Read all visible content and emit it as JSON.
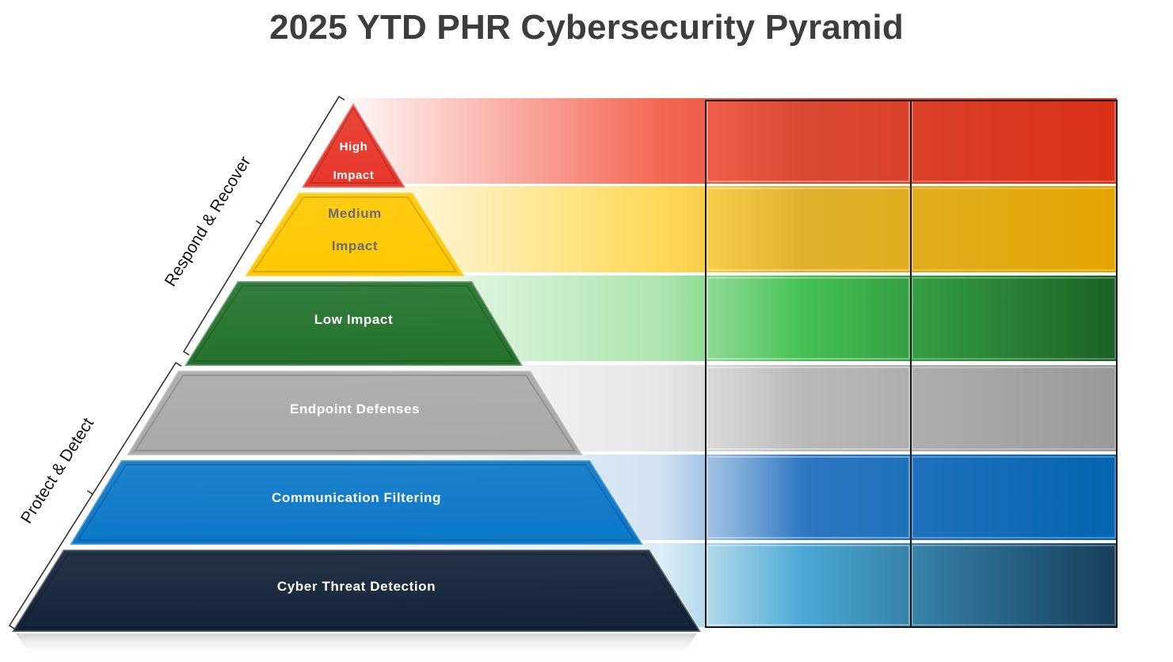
{
  "title": "2025 YTD PHR Cybersecurity Pyramid",
  "brackets": {
    "top": "Respond & Recover",
    "bottom": "Protect & Detect"
  },
  "tiers": [
    {
      "id": "high",
      "lines": [
        "High",
        "Impact"
      ],
      "color": "#e8372b",
      "text_color": "#ffffff",
      "band_from": "#f24b35",
      "band_mid": "#db4a33",
      "band_to": "#db3018"
    },
    {
      "id": "medium",
      "lines": [
        "Medium",
        "Impact"
      ],
      "color": "#ffc800",
      "text_color": "#6b6b7a",
      "band_from": "#ffd23a",
      "band_mid": "#e0b02c",
      "band_to": "#e3a500"
    },
    {
      "id": "low",
      "lines": [
        "Low Impact"
      ],
      "color": "#23722c",
      "text_color": "#ffffff",
      "band_from": "#9ee0a0",
      "band_mid": "#44c054",
      "band_to": "#1b6125"
    },
    {
      "id": "endpoint",
      "lines": [
        "Endpoint Defenses"
      ],
      "color": "#a9a9a9",
      "text_color": "#ffffff",
      "band_from": "#e2e2e2",
      "band_mid": "#b9b9b9",
      "band_to": "#999999"
    },
    {
      "id": "communication",
      "lines": [
        "Communication Filtering"
      ],
      "color": "#0b78c9",
      "text_color": "#ffffff",
      "band_from": "#c9dcef",
      "band_mid": "#2e77c2",
      "band_to": "#0465b0"
    },
    {
      "id": "detection",
      "lines": [
        "Cyber Threat Detection"
      ],
      "color": "#132237",
      "text_color": "#ffffff",
      "band_from": "#d5eaf3",
      "band_mid": "#49a7d4",
      "band_to": "#163e5a"
    }
  ]
}
